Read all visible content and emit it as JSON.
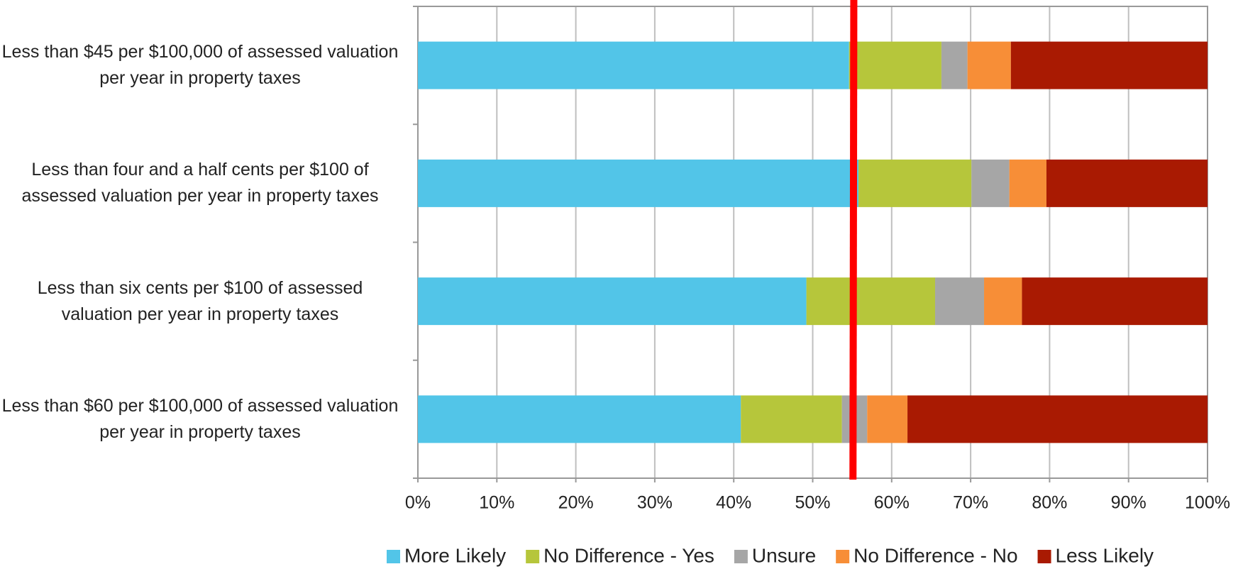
{
  "chart_data": {
    "type": "stacked-bar-horizontal",
    "categories": [
      "Less than $45 per $100,000 of assessed valuation per year in property taxes",
      "Less than four and a half cents per $100 of assessed valuation per year in property taxes",
      "Less than six cents per $100 of assessed valuation per year in property taxes",
      "Less than $60 per $100,000 of assessed valuation per year in property taxes"
    ],
    "series": [
      {
        "name": "More Likely",
        "color": "#52c5e8",
        "values": [
          54.6,
          55.8,
          49.2,
          40.9
        ]
      },
      {
        "name": "No Difference - Yes",
        "color": "#b6c63b",
        "values": [
          11.7,
          14.3,
          16.3,
          12.8
        ]
      },
      {
        "name": "Unsure",
        "color": "#a6a6a6",
        "values": [
          3.3,
          4.8,
          6.2,
          3.2
        ]
      },
      {
        "name": "No Difference - No",
        "color": "#f78e37",
        "values": [
          5.5,
          4.7,
          4.8,
          5.1
        ]
      },
      {
        "name": "Less Likely",
        "color": "#a91a02",
        "values": [
          24.9,
          20.4,
          23.5,
          38.0
        ]
      }
    ],
    "reference_line": {
      "value": 55.1,
      "color": "#ff0000"
    },
    "xlim": [
      0,
      100
    ],
    "xticks": [
      {
        "value": 0,
        "label": "0%"
      },
      {
        "value": 10,
        "label": "10%"
      },
      {
        "value": 20,
        "label": "20%"
      },
      {
        "value": 30,
        "label": "30%"
      },
      {
        "value": 40,
        "label": "40%"
      },
      {
        "value": 50,
        "label": "50%"
      },
      {
        "value": 60,
        "label": "60%"
      },
      {
        "value": 70,
        "label": "70%"
      },
      {
        "value": 80,
        "label": "80%"
      },
      {
        "value": 90,
        "label": "90%"
      },
      {
        "value": 100,
        "label": "100%"
      }
    ],
    "grid": true,
    "legend": "bottom"
  }
}
